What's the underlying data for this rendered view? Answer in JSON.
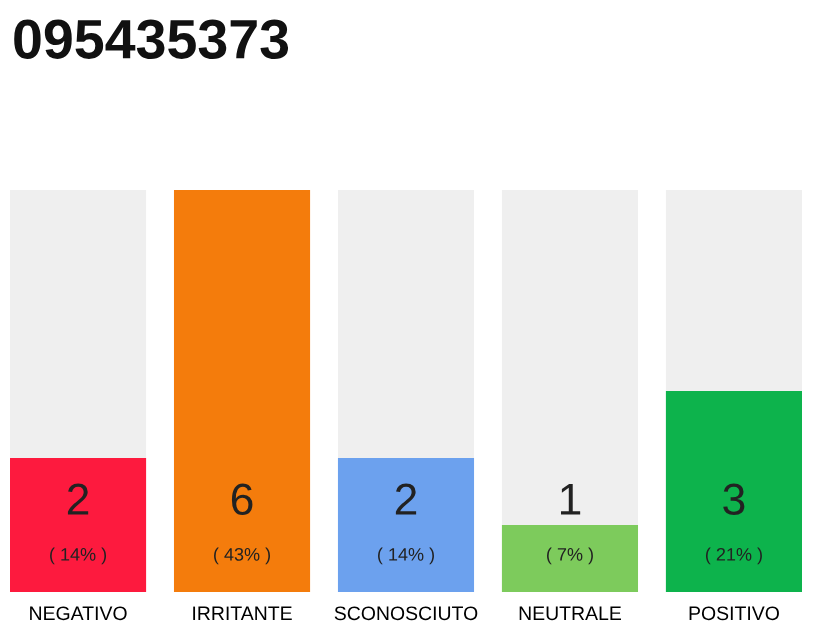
{
  "chart_data": {
    "type": "bar",
    "title": "095435373",
    "categories": [
      "NEGATIVO",
      "IRRITANTE",
      "SCONOSCIUTO",
      "NEUTRALE",
      "POSITIVO"
    ],
    "values": [
      2,
      6,
      2,
      1,
      3
    ],
    "colors": [
      "#fd1a3e",
      "#f47c0c",
      "#6ca1ee",
      "#7dcb5c",
      "#0db34c"
    ],
    "ylim": [
      0,
      6
    ],
    "tick_labels": "x",
    "data_labels": true,
    "grid": false,
    "legend": false,
    "annotations": [
      "( 14% )",
      "( 43% )",
      "( 14% )",
      "( 7% )",
      "( 21% )"
    ]
  }
}
